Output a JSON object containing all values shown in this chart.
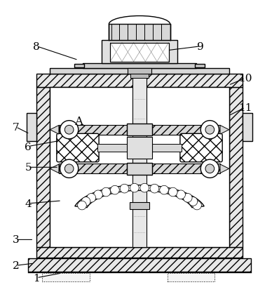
{
  "bg_color": "#ffffff",
  "line_color": "#000000",
  "figsize": [
    3.98,
    4.27
  ],
  "dpi": 100,
  "label_positions": {
    "1": [
      0.13,
      0.038,
      0.22,
      0.055
    ],
    "2": [
      0.055,
      0.082,
      0.12,
      0.09
    ],
    "3": [
      0.055,
      0.175,
      0.12,
      0.175
    ],
    "4": [
      0.1,
      0.305,
      0.22,
      0.315
    ],
    "5": [
      0.1,
      0.435,
      0.21,
      0.435
    ],
    "6": [
      0.1,
      0.51,
      0.21,
      0.53
    ],
    "7": [
      0.055,
      0.58,
      0.105,
      0.555
    ],
    "8": [
      0.13,
      0.87,
      0.28,
      0.82
    ],
    "9": [
      0.72,
      0.87,
      0.6,
      0.855
    ],
    "10": [
      0.88,
      0.755,
      0.82,
      0.73
    ],
    "11": [
      0.88,
      0.65,
      0.82,
      0.62
    ],
    "A": [
      0.28,
      0.6,
      0.28,
      0.6
    ]
  }
}
